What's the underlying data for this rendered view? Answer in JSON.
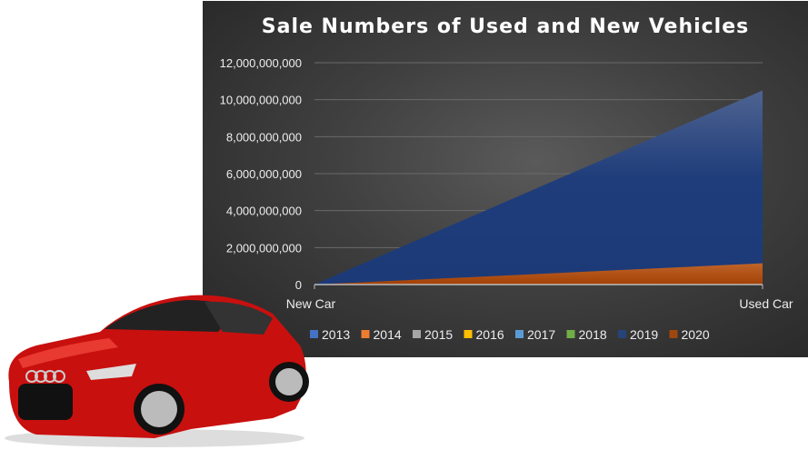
{
  "chart_data": {
    "type": "area",
    "title": "Sale Numbers of Used and New Vehicles",
    "categories": [
      "New Car",
      "Used Car"
    ],
    "ylim": [
      0,
      12000000000
    ],
    "yticks": [
      "0",
      "2,000,000,000",
      "4,000,000,000",
      "6,000,000,000",
      "8,000,000,000",
      "10,000,000,000",
      "12,000,000,000"
    ],
    "grid": true,
    "legend_position": "bottom",
    "series": [
      {
        "name": "2013",
        "color": "#4472c4",
        "values": [
          0,
          0
        ]
      },
      {
        "name": "2014",
        "color": "#ed7d31",
        "values": [
          0,
          0
        ]
      },
      {
        "name": "2015",
        "color": "#a5a5a5",
        "values": [
          0,
          0
        ]
      },
      {
        "name": "2016",
        "color": "#ffc000",
        "values": [
          0,
          0
        ]
      },
      {
        "name": "2017",
        "color": "#5b9bd5",
        "values": [
          0,
          0
        ]
      },
      {
        "name": "2018",
        "color": "#70ad47",
        "values": [
          0,
          0
        ]
      },
      {
        "name": "2019",
        "color": "#264478",
        "values": [
          0,
          10500000000
        ]
      },
      {
        "name": "2020",
        "color": "#9e480e",
        "values": [
          0,
          1150000000
        ]
      }
    ]
  }
}
